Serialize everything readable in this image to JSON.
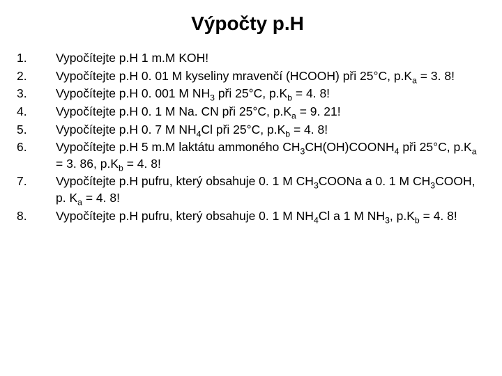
{
  "title": "Výpočty p.H",
  "title_fontsize": 28,
  "body_fontsize": 17.5,
  "text_color": "#000000",
  "background_color": "#ffffff",
  "items": [
    {
      "n": "1.",
      "html": "Vypočítejte p.H 1 m.M KOH!"
    },
    {
      "n": "2.",
      "html": "Vypočítejte p.H 0. 01 M kyseliny mravenčí (HCOOH) při 25°C, p.K<sub>a</sub> = 3. 8!"
    },
    {
      "n": "3.",
      "html": "Vypočítejte p.H 0. 001 M NH<sub>3</sub> při 25°C, p.K<sub>b</sub> = 4. 8!"
    },
    {
      "n": "4.",
      "html": "Vypočítejte p.H 0. 1 M Na. CN při 25°C, p.K<sub>a</sub> = 9. 21!"
    },
    {
      "n": "5.",
      "html": "Vypočítejte p.H 0. 7 M NH<sub>4</sub>Cl při 25°C, p.K<sub>b</sub> = 4. 8!"
    },
    {
      "n": "6.",
      "html": "Vypočítejte p.H 5 m.M laktátu ammoného CH<sub>3</sub>CH(OH)COONH<sub>4</sub> při 25°C, p.K<sub>a</sub> = 3. 86, p.K<sub>b</sub> = 4. 8!"
    },
    {
      "n": "7.",
      "html": "Vypočítejte p.H pufru, který obsahuje 0. 1 M CH<sub>3</sub>COONa a 0. 1 M CH<sub>3</sub>COOH, p. K<sub>a</sub> = 4. 8!"
    },
    {
      "n": "8.",
      "html": "Vypočítejte p.H pufru, který obsahuje 0. 1 M NH<sub>4</sub>Cl a 1 M NH<sub>3</sub>, p.K<sub>b</sub> = 4. 8!"
    }
  ]
}
